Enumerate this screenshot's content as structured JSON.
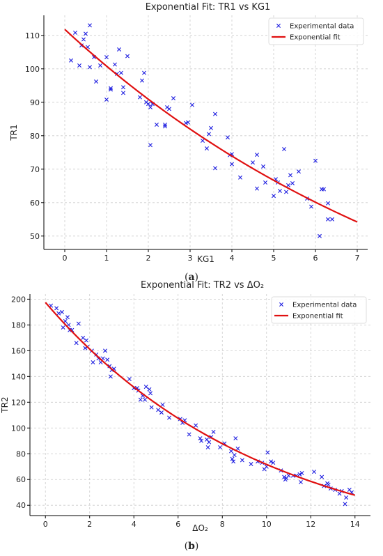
{
  "chart_data": [
    {
      "type": "scatter",
      "title": "Exponential Fit: TR1 vs KG1",
      "xlabel": "KG1",
      "ylabel": "TR1",
      "xlim": [
        -0.5,
        7.25
      ],
      "ylim": [
        46,
        116
      ],
      "xticks": [
        "0",
        "1",
        "2",
        "3",
        "4",
        "5",
        "6",
        "7"
      ],
      "yticks": [
        "50",
        "60",
        "70",
        "80",
        "90",
        "100",
        "110"
      ],
      "grid": true,
      "legend_position": "top-right",
      "series": [
        {
          "name": "Experimental data",
          "kind": "scatter",
          "color": "#1f1fe0",
          "marker": "x",
          "points": [
            [
              0.15,
              102.5
            ],
            [
              0.25,
              110.8
            ],
            [
              0.35,
              101
            ],
            [
              0.4,
              107
            ],
            [
              0.45,
              108.8
            ],
            [
              0.5,
              110.5
            ],
            [
              0.55,
              106.5
            ],
            [
              0.6,
              113
            ],
            [
              0.6,
              100.5
            ],
            [
              0.7,
              103.5
            ],
            [
              0.75,
              96.2
            ],
            [
              0.85,
              101
            ],
            [
              1.0,
              103.5
            ],
            [
              1.0,
              90.8
            ],
            [
              1.1,
              93.8
            ],
            [
              1.1,
              94.2
            ],
            [
              1.2,
              101.3
            ],
            [
              1.25,
              98.5
            ],
            [
              1.3,
              105.8
            ],
            [
              1.35,
              98.8
            ],
            [
              1.4,
              94.5
            ],
            [
              1.4,
              92.8
            ],
            [
              1.5,
              103.8
            ],
            [
              1.8,
              91.5
            ],
            [
              1.85,
              96.5
            ],
            [
              1.9,
              98.8
            ],
            [
              1.95,
              90
            ],
            [
              2.0,
              89.5
            ],
            [
              2.05,
              77.2
            ],
            [
              2.05,
              88.5
            ],
            [
              2.1,
              89.5
            ],
            [
              2.2,
              83.3
            ],
            [
              2.4,
              83.3
            ],
            [
              2.4,
              82.8
            ],
            [
              2.45,
              88.5
            ],
            [
              2.5,
              88
            ],
            [
              2.6,
              91.2
            ],
            [
              2.9,
              83.8
            ],
            [
              2.95,
              84
            ],
            [
              3.05,
              89.2
            ],
            [
              3.3,
              78.5
            ],
            [
              3.4,
              76.2
            ],
            [
              3.45,
              80.5
            ],
            [
              3.5,
              82.3
            ],
            [
              3.6,
              70.3
            ],
            [
              3.6,
              86.5
            ],
            [
              3.9,
              79.5
            ],
            [
              3.95,
              74.2
            ],
            [
              4.0,
              74.5
            ],
            [
              4.0,
              71.5
            ],
            [
              4.2,
              67.5
            ],
            [
              4.5,
              72
            ],
            [
              4.6,
              64.2
            ],
            [
              4.6,
              74.3
            ],
            [
              4.75,
              70.8
            ],
            [
              4.8,
              66
            ],
            [
              5.0,
              62
            ],
            [
              5.05,
              67
            ],
            [
              5.1,
              66
            ],
            [
              5.15,
              63.5
            ],
            [
              5.25,
              76
            ],
            [
              5.3,
              63.2
            ],
            [
              5.35,
              65.2
            ],
            [
              5.4,
              68.2
            ],
            [
              5.45,
              65.8
            ],
            [
              5.6,
              69.3
            ],
            [
              5.8,
              61.2
            ],
            [
              5.9,
              58.8
            ],
            [
              6.0,
              72.5
            ],
            [
              6.1,
              50
            ],
            [
              6.15,
              64
            ],
            [
              6.2,
              64
            ],
            [
              6.3,
              55
            ],
            [
              6.3,
              59.8
            ],
            [
              6.4,
              55
            ]
          ]
        },
        {
          "name": "Exponential fit",
          "kind": "line",
          "color": "#e01010",
          "model": "y = a*exp(b*x)",
          "a": 111.8,
          "b": -0.1034,
          "x_range": [
            0,
            7
          ]
        }
      ]
    },
    {
      "type": "scatter",
      "title": "Exponential Fit: TR2 vs ΔO₂",
      "xlabel": "ΔO₂",
      "ylabel": "TR2",
      "xlim": [
        -0.7,
        14.7
      ],
      "ylim": [
        32,
        204
      ],
      "xticks": [
        "0",
        "2",
        "4",
        "6",
        "8",
        "10",
        "12",
        "14"
      ],
      "yticks": [
        "40",
        "60",
        "80",
        "100",
        "120",
        "140",
        "160",
        "180",
        "200"
      ],
      "grid": true,
      "legend_position": "top-right",
      "series": [
        {
          "name": "Experimental data",
          "kind": "scatter",
          "color": "#1f1fe0",
          "marker": "x",
          "points": [
            [
              0.25,
              195
            ],
            [
              0.5,
              193
            ],
            [
              0.6,
              189
            ],
            [
              0.75,
              190
            ],
            [
              0.8,
              178
            ],
            [
              0.9,
              183
            ],
            [
              1.0,
              186
            ],
            [
              1.05,
              180
            ],
            [
              1.1,
              176
            ],
            [
              1.2,
              176
            ],
            [
              1.4,
              166
            ],
            [
              1.5,
              181
            ],
            [
              1.7,
              170
            ],
            [
              1.8,
              162
            ],
            [
              1.85,
              168
            ],
            [
              1.9,
              163
            ],
            [
              2.1,
              160
            ],
            [
              2.15,
              151
            ],
            [
              2.3,
              157
            ],
            [
              2.4,
              154
            ],
            [
              2.5,
              151
            ],
            [
              2.6,
              154
            ],
            [
              2.7,
              160
            ],
            [
              2.8,
              153
            ],
            [
              2.9,
              148
            ],
            [
              2.95,
              140
            ],
            [
              3.0,
              145
            ],
            [
              3.1,
              146
            ],
            [
              3.8,
              138
            ],
            [
              4.0,
              131
            ],
            [
              4.15,
              131
            ],
            [
              4.2,
              129
            ],
            [
              4.3,
              122
            ],
            [
              4.4,
              125
            ],
            [
              4.5,
              122
            ],
            [
              4.55,
              132
            ],
            [
              4.7,
              130
            ],
            [
              4.75,
              127
            ],
            [
              4.8,
              116
            ],
            [
              5.1,
              114
            ],
            [
              5.25,
              112
            ],
            [
              5.3,
              118
            ],
            [
              5.6,
              108
            ],
            [
              6.1,
              107
            ],
            [
              6.2,
              104
            ],
            [
              6.3,
              106
            ],
            [
              6.5,
              95
            ],
            [
              6.8,
              102
            ],
            [
              7.0,
              92
            ],
            [
              7.05,
              90
            ],
            [
              7.3,
              91
            ],
            [
              7.35,
              85
            ],
            [
              7.4,
              89
            ],
            [
              7.5,
              93
            ],
            [
              7.6,
              97
            ],
            [
              7.9,
              85
            ],
            [
              8.1,
              88
            ],
            [
              8.4,
              82
            ],
            [
              8.45,
              76
            ],
            [
              8.5,
              74
            ],
            [
              8.55,
              79
            ],
            [
              8.6,
              92
            ],
            [
              8.7,
              84
            ],
            [
              8.9,
              75
            ],
            [
              9.3,
              72
            ],
            [
              9.6,
              74
            ],
            [
              9.8,
              73
            ],
            [
              9.9,
              68
            ],
            [
              10.0,
              70
            ],
            [
              10.05,
              81
            ],
            [
              10.2,
              74
            ],
            [
              10.3,
              73
            ],
            [
              10.65,
              67
            ],
            [
              10.8,
              62
            ],
            [
              10.85,
              60
            ],
            [
              10.9,
              61
            ],
            [
              11.0,
              63
            ],
            [
              11.2,
              63
            ],
            [
              11.35,
              63
            ],
            [
              11.5,
              64
            ],
            [
              11.55,
              58
            ],
            [
              11.6,
              65
            ],
            [
              12.15,
              66
            ],
            [
              12.5,
              62
            ],
            [
              12.6,
              55
            ],
            [
              12.75,
              57
            ],
            [
              12.8,
              56
            ],
            [
              12.9,
              53
            ],
            [
              13.1,
              52
            ],
            [
              13.3,
              49
            ],
            [
              13.4,
              51
            ],
            [
              13.55,
              41
            ],
            [
              13.6,
              46
            ],
            [
              13.75,
              52
            ],
            [
              13.85,
              50
            ]
          ]
        },
        {
          "name": "Exponential fit",
          "kind": "line",
          "color": "#e01010",
          "model": "y = a*exp(b*x)",
          "a": 197.5,
          "b": -0.1013,
          "x_range": [
            0,
            14
          ]
        }
      ]
    }
  ],
  "captions": [
    "(a)",
    "(b)"
  ]
}
